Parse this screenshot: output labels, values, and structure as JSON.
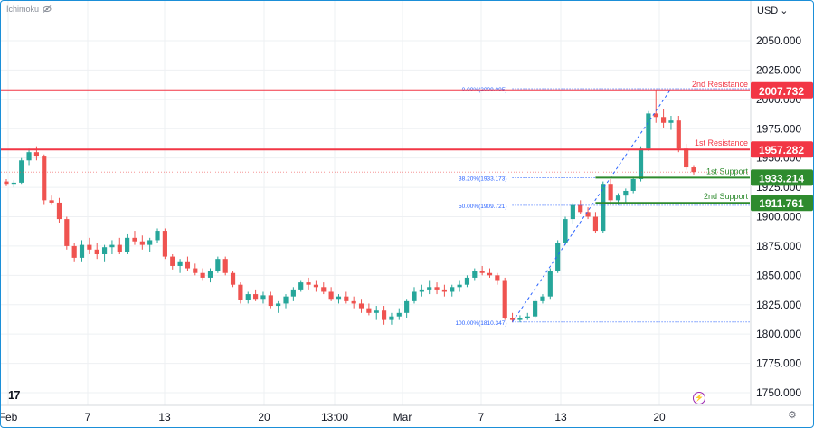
{
  "indicator": {
    "name": "Ichimoku",
    "icon": "eye-off-icon"
  },
  "currency": {
    "label": "USD",
    "icon": "chevron-down-icon"
  },
  "colors": {
    "up": "#26a69a",
    "down": "#ef5350",
    "resistance": "#f23645",
    "support": "#2e8b2e",
    "fib": "#2962ff",
    "grid": "#eef0f3"
  },
  "chart_data": {
    "type": "candlestick",
    "ylim": [
      1740,
      2075
    ],
    "y_ticks": [
      "1750.000",
      "1775.000",
      "1800.000",
      "1825.000",
      "1850.000",
      "1875.000",
      "1900.000",
      "1925.000",
      "1950.000",
      "1975.000",
      "2000.000",
      "2025.000",
      "2050.000"
    ],
    "x_ticks": [
      "Feb",
      "7",
      "13",
      "20",
      "13:00",
      "Mar",
      "7",
      "13",
      "20"
    ],
    "levels": [
      {
        "name": "2nd Resistance",
        "value": 2007.732,
        "value_label": "2007.732",
        "kind": "resistance"
      },
      {
        "name": "1st Resistance",
        "value": 1957.282,
        "value_label": "1957.282",
        "kind": "resistance"
      },
      {
        "name": "1st Support",
        "value": 1933.214,
        "value_label": "1933.214",
        "kind": "support"
      },
      {
        "name": "2nd Support",
        "value": 1911.761,
        "value_label": "1911.761",
        "kind": "support"
      }
    ],
    "fibonacci": [
      {
        "label": "0.00%(2009.095)",
        "value": 2009.095
      },
      {
        "label": "38.20%(1933.173)",
        "value": 1933.173
      },
      {
        "label": "50.00%(1909.721)",
        "value": 1909.721
      },
      {
        "label": "100.00%(1810.347)",
        "value": 1810.347
      }
    ],
    "candles": [
      [
        1930,
        1932,
        1926,
        1928
      ],
      [
        1928,
        1931,
        1925,
        1929
      ],
      [
        1929,
        1950,
        1928,
        1948
      ],
      [
        1948,
        1958,
        1944,
        1955
      ],
      [
        1955,
        1960,
        1948,
        1952
      ],
      [
        1952,
        1953,
        1910,
        1914
      ],
      [
        1914,
        1918,
        1910,
        1912
      ],
      [
        1912,
        1916,
        1895,
        1898
      ],
      [
        1898,
        1900,
        1872,
        1875
      ],
      [
        1875,
        1878,
        1862,
        1865
      ],
      [
        1865,
        1880,
        1862,
        1876
      ],
      [
        1876,
        1882,
        1868,
        1872
      ],
      [
        1872,
        1878,
        1864,
        1868
      ],
      [
        1868,
        1876,
        1862,
        1874
      ],
      [
        1874,
        1880,
        1868,
        1876
      ],
      [
        1876,
        1882,
        1868,
        1870
      ],
      [
        1870,
        1885,
        1868,
        1882
      ],
      [
        1882,
        1888,
        1876,
        1879
      ],
      [
        1879,
        1884,
        1872,
        1876
      ],
      [
        1876,
        1882,
        1870,
        1880
      ],
      [
        1880,
        1890,
        1878,
        1888
      ],
      [
        1888,
        1890,
        1864,
        1866
      ],
      [
        1866,
        1868,
        1855,
        1858
      ],
      [
        1858,
        1864,
        1852,
        1862
      ],
      [
        1862,
        1866,
        1854,
        1856
      ],
      [
        1856,
        1860,
        1850,
        1852
      ],
      [
        1852,
        1856,
        1846,
        1848
      ],
      [
        1848,
        1856,
        1844,
        1854
      ],
      [
        1854,
        1866,
        1852,
        1864
      ],
      [
        1864,
        1866,
        1850,
        1852
      ],
      [
        1852,
        1854,
        1840,
        1842
      ],
      [
        1842,
        1844,
        1826,
        1829
      ],
      [
        1829,
        1836,
        1826,
        1834
      ],
      [
        1834,
        1838,
        1828,
        1830
      ],
      [
        1830,
        1836,
        1826,
        1833
      ],
      [
        1833,
        1836,
        1822,
        1824
      ],
      [
        1824,
        1828,
        1818,
        1826
      ],
      [
        1826,
        1834,
        1822,
        1832
      ],
      [
        1832,
        1840,
        1828,
        1838
      ],
      [
        1838,
        1846,
        1836,
        1844
      ],
      [
        1844,
        1848,
        1838,
        1842
      ],
      [
        1842,
        1846,
        1836,
        1840
      ],
      [
        1840,
        1844,
        1834,
        1836
      ],
      [
        1836,
        1840,
        1828,
        1830
      ],
      [
        1830,
        1834,
        1826,
        1832
      ],
      [
        1832,
        1836,
        1826,
        1828
      ],
      [
        1828,
        1832,
        1822,
        1826
      ],
      [
        1826,
        1830,
        1818,
        1822
      ],
      [
        1822,
        1826,
        1816,
        1818
      ],
      [
        1818,
        1824,
        1812,
        1820
      ],
      [
        1820,
        1824,
        1808,
        1812
      ],
      [
        1812,
        1818,
        1808,
        1815
      ],
      [
        1815,
        1822,
        1812,
        1818
      ],
      [
        1818,
        1830,
        1814,
        1828
      ],
      [
        1828,
        1840,
        1826,
        1836
      ],
      [
        1836,
        1842,
        1832,
        1838
      ],
      [
        1838,
        1846,
        1834,
        1840
      ],
      [
        1840,
        1844,
        1834,
        1838
      ],
      [
        1838,
        1842,
        1832,
        1836
      ],
      [
        1836,
        1842,
        1832,
        1840
      ],
      [
        1840,
        1846,
        1836,
        1842
      ],
      [
        1842,
        1850,
        1840,
        1848
      ],
      [
        1848,
        1856,
        1846,
        1854
      ],
      [
        1854,
        1858,
        1850,
        1852
      ],
      [
        1852,
        1856,
        1848,
        1850
      ],
      [
        1850,
        1852,
        1842,
        1846
      ],
      [
        1846,
        1848,
        1812,
        1814
      ],
      [
        1814,
        1818,
        1810,
        1812
      ],
      [
        1812,
        1816,
        1810,
        1814
      ],
      [
        1814,
        1818,
        1812,
        1815
      ],
      [
        1815,
        1830,
        1814,
        1828
      ],
      [
        1828,
        1834,
        1826,
        1832
      ],
      [
        1832,
        1856,
        1830,
        1854
      ],
      [
        1854,
        1880,
        1852,
        1878
      ],
      [
        1878,
        1900,
        1876,
        1898
      ],
      [
        1898,
        1912,
        1894,
        1910
      ],
      [
        1910,
        1914,
        1902,
        1904
      ],
      [
        1904,
        1908,
        1898,
        1900
      ],
      [
        1900,
        1904,
        1886,
        1888
      ],
      [
        1888,
        1930,
        1886,
        1928
      ],
      [
        1928,
        1932,
        1910,
        1914
      ],
      [
        1914,
        1920,
        1910,
        1918
      ],
      [
        1918,
        1924,
        1912,
        1922
      ],
      [
        1922,
        1934,
        1920,
        1932
      ],
      [
        1932,
        1960,
        1930,
        1958
      ],
      [
        1958,
        1990,
        1956,
        1988
      ],
      [
        1988,
        2008,
        1980,
        1985
      ],
      [
        1985,
        1992,
        1976,
        1980
      ],
      [
        1980,
        1986,
        1974,
        1982
      ],
      [
        1982,
        1986,
        1955,
        1958
      ],
      [
        1958,
        1962,
        1940,
        1942
      ],
      [
        1942,
        1944,
        1936,
        1938
      ]
    ]
  }
}
